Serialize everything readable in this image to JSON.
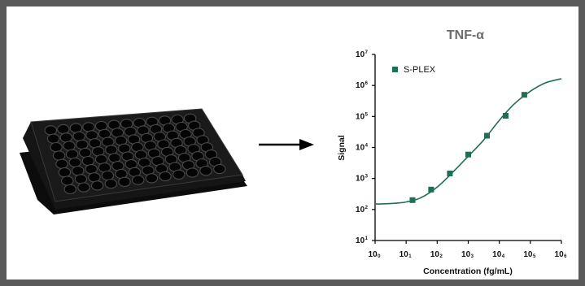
{
  "chart_data": {
    "type": "scatter",
    "title": "TNF-α",
    "xlabel": "Concentration (fg/mL)",
    "ylabel": "Signal",
    "x_scale": "log",
    "y_scale": "log",
    "xlim": [
      1,
      1000000
    ],
    "ylim": [
      10,
      10000000
    ],
    "x_ticks": [
      {
        "base": "10",
        "exp": "0"
      },
      {
        "base": "10",
        "exp": "1"
      },
      {
        "base": "10",
        "exp": "2"
      },
      {
        "base": "10",
        "exp": "3"
      },
      {
        "base": "10",
        "exp": "4"
      },
      {
        "base": "10",
        "exp": "5"
      },
      {
        "base": "10",
        "exp": "6"
      }
    ],
    "y_ticks": [
      {
        "base": "10",
        "exp": "1"
      },
      {
        "base": "10",
        "exp": "2"
      },
      {
        "base": "10",
        "exp": "3"
      },
      {
        "base": "10",
        "exp": "4"
      },
      {
        "base": "10",
        "exp": "5"
      },
      {
        "base": "10",
        "exp": "6"
      },
      {
        "base": "10",
        "exp": "7"
      }
    ],
    "series": [
      {
        "name": "S-PLEX",
        "color": "#1f6e58",
        "x": [
          16,
          64,
          256,
          1000,
          4000,
          16000,
          64000
        ],
        "y": [
          200,
          440,
          1450,
          5900,
          24000,
          105000,
          500000
        ]
      }
    ],
    "fit_curve": {
      "color": "#1f6e58",
      "x": [
        1,
        3,
        10,
        30,
        100,
        300,
        1000,
        3000,
        10000,
        30000,
        100000,
        300000,
        1000000
      ],
      "y": [
        150,
        155,
        175,
        240,
        530,
        1500,
        5200,
        16500,
        75000,
        250000,
        650000,
        1200000,
        1650000
      ]
    },
    "grid": false,
    "legend_position": "top-left"
  },
  "illustration": {
    "plate_color": "#1a1a1a",
    "arrow_color": "#000000"
  }
}
